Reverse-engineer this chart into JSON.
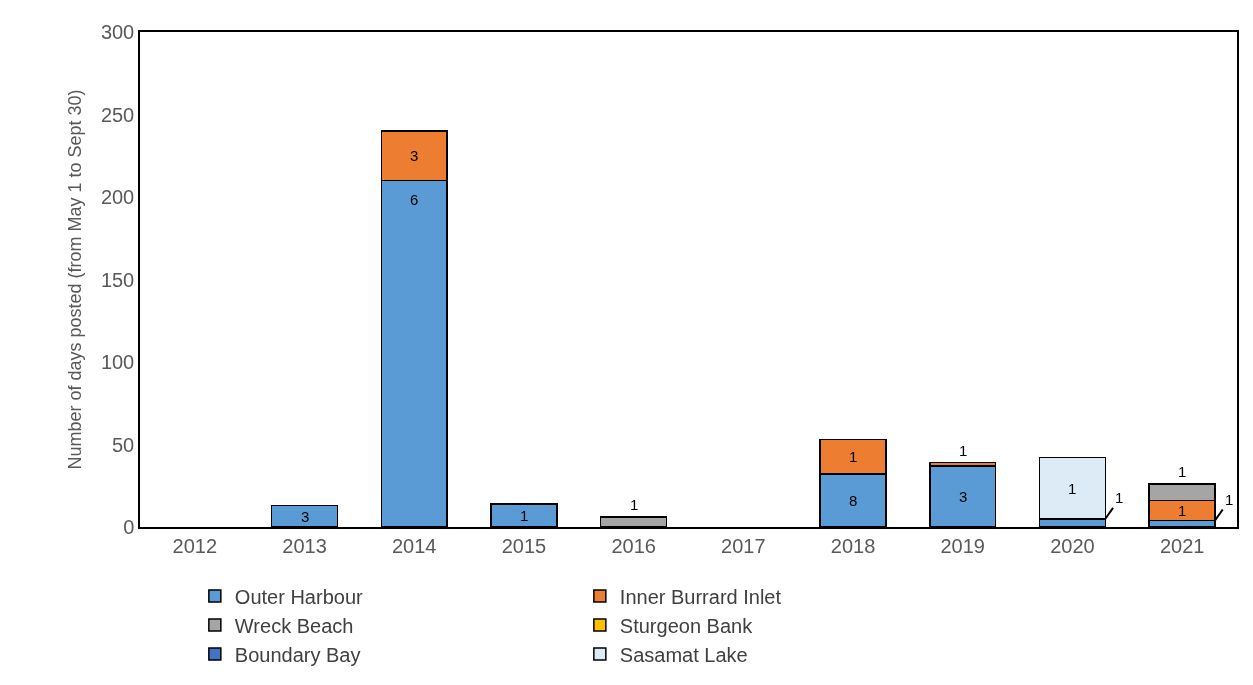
{
  "chart_data": {
    "type": "bar",
    "stacked": true,
    "ylabel": "Number of days posted (from May 1 to Sept 30)",
    "categories": [
      "2012",
      "2013",
      "2014",
      "2015",
      "2016",
      "2017",
      "2018",
      "2019",
      "2020",
      "2021"
    ],
    "series": [
      {
        "name": "Outer Harbour",
        "color": "#5b9bd5",
        "values": [
          null,
          13,
          210,
          14,
          null,
          null,
          32,
          37,
          5,
          4
        ]
      },
      {
        "name": "Inner Burrard Inlet",
        "color": "#ed7d31",
        "values": [
          null,
          null,
          30,
          null,
          null,
          null,
          21,
          2,
          null,
          12
        ]
      },
      {
        "name": "Wreck Beach",
        "color": "#a5a5a5",
        "values": [
          null,
          null,
          null,
          null,
          6,
          null,
          null,
          null,
          null,
          10
        ]
      },
      {
        "name": "Sturgeon Bank",
        "color": "#ffc000",
        "values": [
          null,
          null,
          null,
          null,
          null,
          null,
          null,
          null,
          null,
          null
        ]
      },
      {
        "name": "Boundary Bay",
        "color": "#4472c4",
        "values": [
          null,
          null,
          null,
          null,
          null,
          null,
          null,
          null,
          null,
          null
        ]
      },
      {
        "name": "Sasamat Lake",
        "color": "#ddebf7",
        "values": [
          null,
          null,
          null,
          null,
          null,
          null,
          null,
          null,
          37,
          null
        ]
      }
    ],
    "annotations": [
      {
        "text": "3",
        "x": "2013",
        "y": 13
      },
      {
        "text": "6",
        "x": "2014",
        "y": 210
      },
      {
        "text": "3",
        "x": "2014",
        "y": 240
      },
      {
        "text": "1",
        "x": "2015",
        "y": 14
      },
      {
        "text": "1",
        "x": "2016",
        "y": 6
      },
      {
        "text": "8",
        "x": "2018",
        "y": 32
      },
      {
        "text": "1",
        "x": "2018",
        "y": 53
      },
      {
        "text": "3",
        "x": "2019",
        "y": 37
      },
      {
        "text": "1",
        "x": "2019",
        "y": 39
      },
      {
        "text": "1",
        "x": "2020",
        "y": 42
      },
      {
        "text": "1",
        "x": "2020",
        "y": 5
      },
      {
        "text": "1",
        "x": "2021",
        "y": 4
      },
      {
        "text": "1",
        "x": "2021",
        "y": 16
      },
      {
        "text": "1",
        "x": "2021",
        "y": 26
      }
    ],
    "ylim": [
      0,
      300
    ],
    "yticks": [
      0,
      50,
      100,
      150,
      200,
      250,
      300
    ],
    "legend": "bottom"
  }
}
